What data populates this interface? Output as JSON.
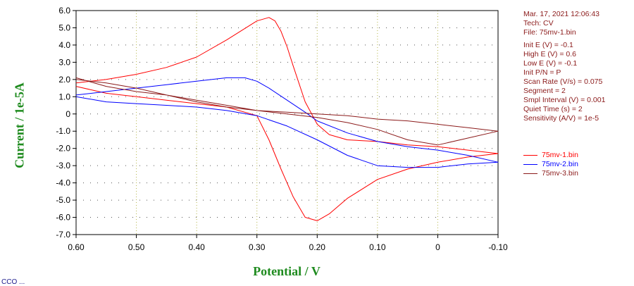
{
  "info": {
    "datetime": "Mar. 17, 2021   12:06:43",
    "tech": "Tech: CV",
    "file": "File: 75mv-1.bin",
    "params": [
      "Init E (V) = -0.1",
      "High E (V) = 0.6",
      "Low E (V) = -0.1",
      "Init P/N = P",
      "Scan Rate (V/s) = 0.075",
      "Segment = 2",
      "Smpl Interval (V) = 0.001",
      "Quiet Time (s) = 2",
      "Sensitivity (A/V) = 1e-5"
    ]
  },
  "footer": "CCO ...",
  "chart_data": {
    "type": "line",
    "xlabel": "Potential / V",
    "ylabel": "Current / 1e-5A",
    "xlim": [
      0.6,
      -0.1
    ],
    "ylim": [
      -7.0,
      6.0
    ],
    "x_reversed": true,
    "x_ticks": [
      "0.60",
      "0.50",
      "0.40",
      "0.30",
      "0.20",
      "0.10",
      "0",
      "-0.10"
    ],
    "x_tick_values": [
      0.6,
      0.5,
      0.4,
      0.3,
      0.2,
      0.1,
      0.0,
      -0.1
    ],
    "y_ticks": [
      "6.0",
      "5.0",
      "4.0",
      "3.0",
      "2.0",
      "1.0",
      "0",
      "-1.0",
      "-2.0",
      "-3.0",
      "-4.0",
      "-5.0",
      "-6.0",
      "-7.0"
    ],
    "y_tick_values": [
      6,
      5,
      4,
      3,
      2,
      1,
      0,
      -1,
      -2,
      -3,
      -4,
      -5,
      -6,
      -7
    ],
    "grid": "dotted",
    "legend_position": "right",
    "series": [
      {
        "name": "75mv-1.bin",
        "color": "#ff0000",
        "x": [
          0.6,
          0.55,
          0.5,
          0.45,
          0.4,
          0.35,
          0.3,
          0.28,
          0.27,
          0.26,
          0.25,
          0.24,
          0.22,
          0.2,
          0.18,
          0.15,
          0.1,
          0.05,
          0.0,
          -0.05,
          -0.1,
          -0.05,
          0.0,
          0.05,
          0.1,
          0.15,
          0.18,
          0.2,
          0.22,
          0.24,
          0.26,
          0.28,
          0.3,
          0.35,
          0.4,
          0.45,
          0.5,
          0.55,
          0.6
        ],
        "y": [
          1.8,
          2.0,
          2.3,
          2.7,
          3.3,
          4.3,
          5.4,
          5.6,
          5.4,
          4.8,
          3.9,
          2.8,
          0.7,
          -0.6,
          -1.2,
          -1.5,
          -1.6,
          -1.8,
          -1.9,
          -2.1,
          -2.3,
          -2.5,
          -2.8,
          -3.2,
          -3.8,
          -4.9,
          -5.8,
          -6.2,
          -6.0,
          -4.8,
          -3.2,
          -1.5,
          -0.1,
          0.4,
          0.6,
          0.8,
          1.0,
          1.2,
          1.6
        ]
      },
      {
        "name": "75mv-2.bin",
        "color": "#0000ff",
        "x": [
          0.6,
          0.55,
          0.5,
          0.45,
          0.4,
          0.35,
          0.32,
          0.3,
          0.28,
          0.25,
          0.22,
          0.2,
          0.15,
          0.1,
          0.05,
          0.0,
          -0.05,
          -0.1,
          -0.05,
          0.0,
          0.05,
          0.1,
          0.15,
          0.2,
          0.25,
          0.3,
          0.35,
          0.4,
          0.45,
          0.5,
          0.55,
          0.6
        ],
        "y": [
          1.1,
          1.3,
          1.5,
          1.7,
          1.9,
          2.1,
          2.1,
          1.9,
          1.5,
          0.8,
          0.1,
          -0.4,
          -1.1,
          -1.6,
          -1.9,
          -2.1,
          -2.4,
          -2.8,
          -2.9,
          -3.1,
          -3.1,
          -3.0,
          -2.4,
          -1.5,
          -0.7,
          -0.1,
          0.2,
          0.4,
          0.5,
          0.6,
          0.7,
          1.0
        ]
      },
      {
        "name": "75mv-3.bin",
        "color": "#8b1a1a",
        "x": [
          0.6,
          0.55,
          0.5,
          0.45,
          0.4,
          0.35,
          0.3,
          0.25,
          0.2,
          0.15,
          0.1,
          0.05,
          0.0,
          -0.05,
          -0.1,
          -0.05,
          0.0,
          0.05,
          0.1,
          0.15,
          0.2,
          0.25,
          0.3,
          0.35,
          0.4,
          0.45,
          0.5,
          0.55,
          0.6
        ],
        "y": [
          2.0,
          1.8,
          1.5,
          1.1,
          0.7,
          0.4,
          0.2,
          0.1,
          0.0,
          -0.1,
          -0.3,
          -0.4,
          -0.6,
          -0.8,
          -1.0,
          -1.4,
          -1.8,
          -1.5,
          -0.9,
          -0.5,
          -0.2,
          0.0,
          0.2,
          0.5,
          0.8,
          1.1,
          1.3,
          1.6,
          2.1
        ]
      }
    ]
  }
}
